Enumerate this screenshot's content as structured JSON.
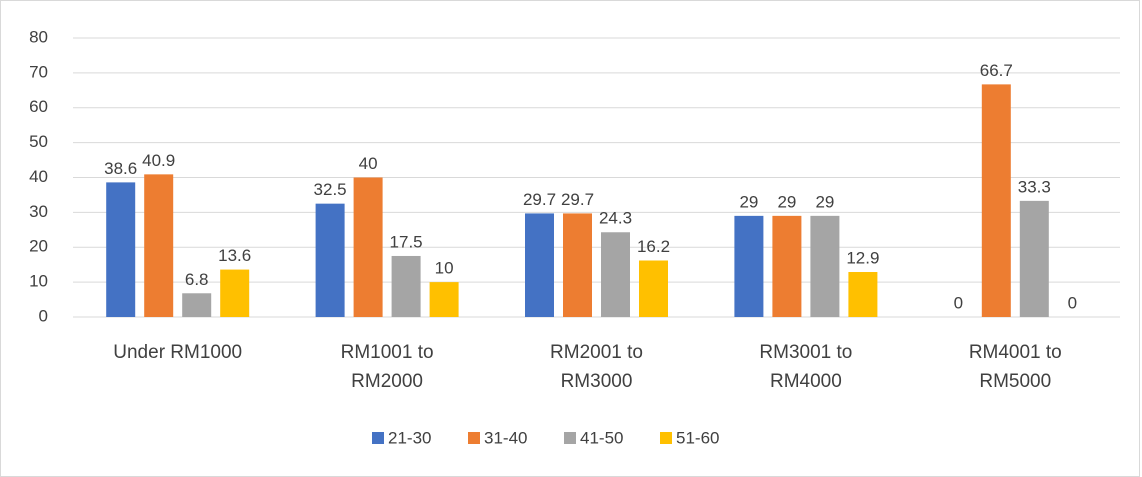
{
  "chart_data": {
    "type": "bar",
    "categories": [
      "Under RM1000",
      "RM1001 to RM2000",
      "RM2001 to RM3000",
      "RM3001 to RM4000",
      "RM4001 to RM5000"
    ],
    "series": [
      {
        "name": "21-30",
        "color": "#4472c4",
        "values": [
          38.6,
          32.5,
          29.7,
          29,
          0
        ]
      },
      {
        "name": "31-40",
        "color": "#ed7d31",
        "values": [
          40.9,
          40,
          29.7,
          29,
          66.7
        ]
      },
      {
        "name": "41-50",
        "color": "#a5a5a5",
        "values": [
          6.8,
          17.5,
          24.3,
          29,
          33.3
        ]
      },
      {
        "name": "51-60",
        "color": "#ffc000",
        "values": [
          13.6,
          10,
          16.2,
          12.9,
          0
        ]
      }
    ],
    "ylim": [
      0,
      80
    ],
    "yticks": [
      0,
      10,
      20,
      30,
      40,
      50,
      60,
      70,
      80
    ],
    "grid": true,
    "legend": "bottom"
  }
}
